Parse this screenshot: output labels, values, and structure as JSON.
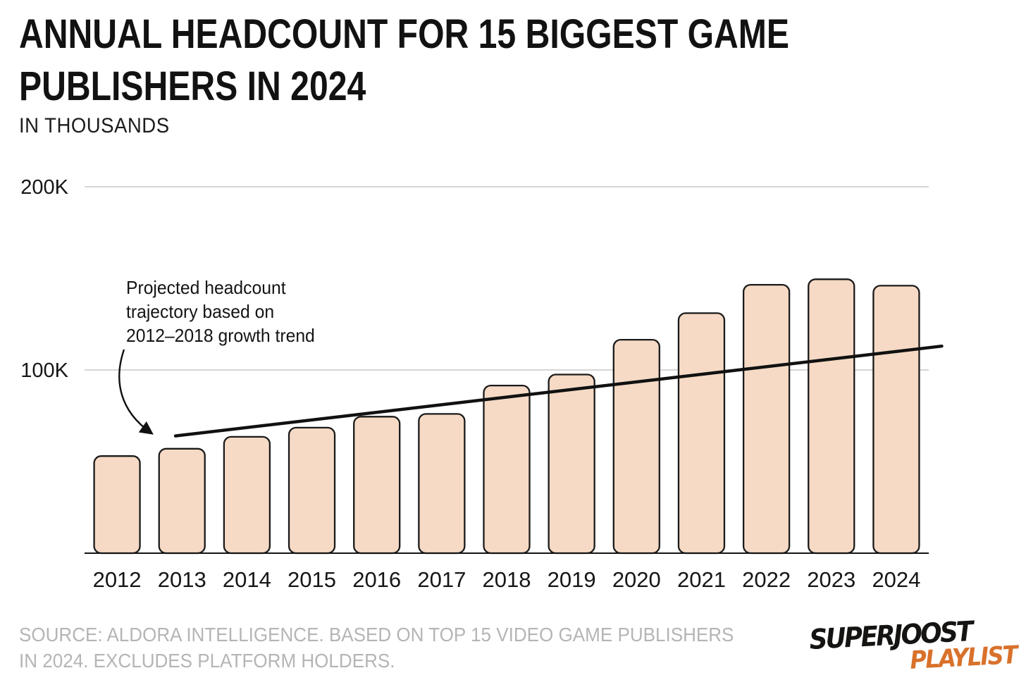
{
  "header": {
    "title_line1": "ANNUAL HEADCOUNT FOR 15 BIGGEST GAME",
    "title_line2": "PUBLISHERS IN 2024",
    "subtitle": "IN THOUSANDS"
  },
  "chart_data": {
    "type": "bar",
    "title": "ANNUAL HEADCOUNT FOR 15 BIGGEST GAME PUBLISHERS IN 2024",
    "ylabel": "IN THOUSANDS",
    "unit": "thousands",
    "categories": [
      "2012",
      "2013",
      "2014",
      "2015",
      "2016",
      "2017",
      "2018",
      "2019",
      "2020",
      "2021",
      "2022",
      "2023",
      "2024"
    ],
    "values": [
      53,
      57,
      63.5,
      68.5,
      74.5,
      76,
      91.5,
      97.5,
      116.5,
      131,
      146.5,
      149.5,
      146
    ],
    "y_ticks": [
      {
        "label": "100K",
        "value": 100
      },
      {
        "label": "200K",
        "value": 200
      }
    ],
    "ylim": [
      0,
      215
    ],
    "grid": "horizontal-gray",
    "legend": "none",
    "bar_color": "#F6DAC5",
    "bar_stroke": "#1A1A1A",
    "trend_line": {
      "description": "Projected headcount trajectory based on 2012–2018 growth trend",
      "color": "#111111",
      "start": {
        "year": 2012.9,
        "value": 64
      },
      "end": {
        "year": 2024.7,
        "value": 113
      }
    },
    "annotation": {
      "line1": "Projected headcount",
      "line2": "trajectory based on",
      "line3": "2012–2018 growth trend"
    }
  },
  "source": {
    "line1": "SOURCE: ALDORA INTELLIGENCE. BASED ON TOP 15 VIDEO GAME PUBLISHERS",
    "line2": "IN 2024. EXCLUDES PLATFORM HOLDERS."
  },
  "logo": {
    "line1": "SUPERJOOST",
    "line2": "PLAYLIST",
    "accent_color": "#D9712B"
  }
}
